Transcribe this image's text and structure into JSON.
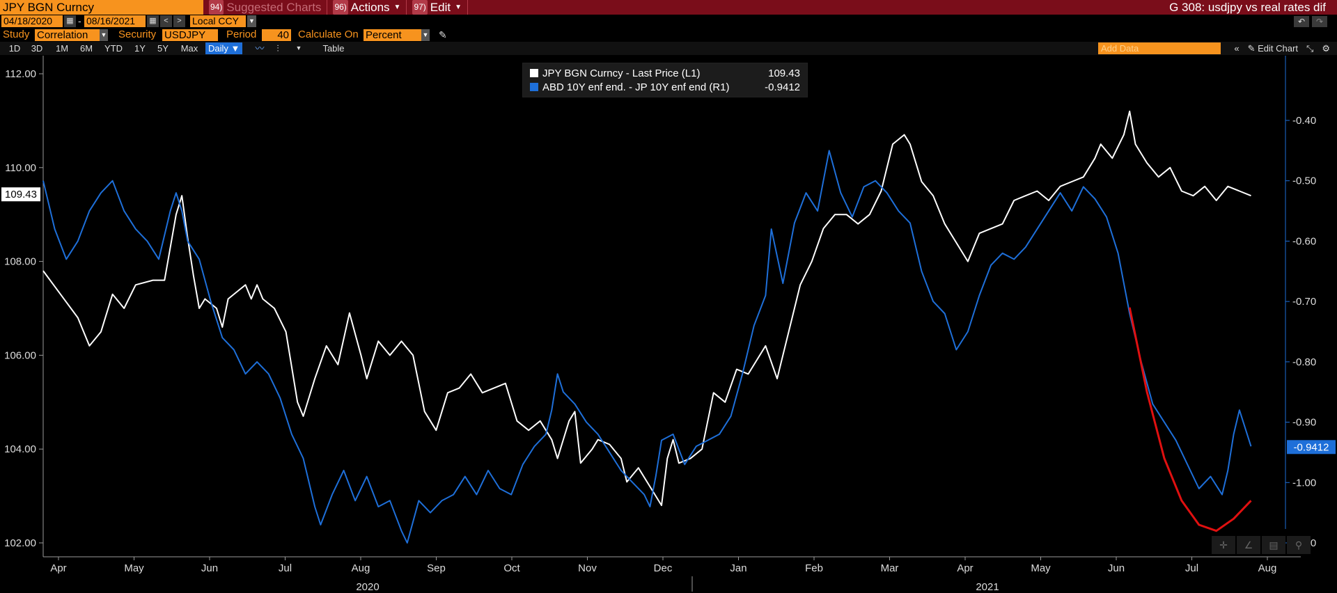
{
  "topbar": {
    "ticker": "JPY BGN Curncy",
    "menu": [
      {
        "num": "94)",
        "label": "Suggested Charts",
        "dim": true,
        "caret": false
      },
      {
        "num": "96)",
        "label": "Actions",
        "dim": false,
        "caret": true
      },
      {
        "num": "97)",
        "label": "Edit",
        "dim": false,
        "caret": true
      }
    ],
    "title": "G 308: usdjpy vs real rates dif"
  },
  "daterow": {
    "start_date": "04/18/2020",
    "end_date": "08/16/2021",
    "currency": "Local CCY"
  },
  "studyrow": {
    "study_label": "Study",
    "study_value": "Correlation",
    "security_label": "Security",
    "security_value": "USDJPY Cu",
    "period_label": "Period",
    "period_value": "40",
    "calc_label": "Calculate On",
    "calc_value": "Percent"
  },
  "rangerow": {
    "ranges": [
      "1D",
      "3D",
      "1M",
      "6M",
      "YTD",
      "1Y",
      "5Y",
      "Max"
    ],
    "frequency": "Daily ▼",
    "table_label": "Table",
    "add_data_placeholder": "Add Data",
    "edit_chart_label": "Edit Chart"
  },
  "legend": [
    {
      "name": "JPY BGN Curncy - Last Price (L1)",
      "value": "109.43",
      "color": "#ffffff"
    },
    {
      "name": "ABD 10Y enf end. - JP 10Y enf end (R1)",
      "value": "-0.9412",
      "color": "#1e6fd9"
    }
  ],
  "chart_data": {
    "type": "line",
    "x_axis": {
      "months": [
        "Apr",
        "May",
        "Jun",
        "Jul",
        "Aug",
        "Sep",
        "Oct",
        "Nov",
        "Dec",
        "Jan",
        "Feb",
        "Mar",
        "Apr",
        "May",
        "Jun",
        "Jul",
        "Aug"
      ],
      "years": [
        "2020",
        "2021"
      ]
    },
    "y_left": {
      "ticks": [
        "112.00",
        "110.00",
        "108.00",
        "106.00",
        "104.00",
        "102.00"
      ],
      "range": [
        102,
        112
      ],
      "last_label": "109.43"
    },
    "y_right": {
      "ticks": [
        "-0.40",
        "-0.50",
        "-0.60",
        "-0.70",
        "-0.80",
        "-0.90",
        "-1.00",
        "-1.10"
      ],
      "range": [
        -1.1,
        -0.4
      ],
      "last_label": "-0.9412"
    },
    "series": [
      {
        "name": "JPY BGN Curncy - Last Price (L1)",
        "axis": "left",
        "color": "#ffffff",
        "points": [
          [
            0,
            107.8
          ],
          [
            3,
            107.3
          ],
          [
            6,
            106.8
          ],
          [
            8,
            106.2
          ],
          [
            10,
            106.5
          ],
          [
            12,
            107.3
          ],
          [
            14,
            107.0
          ],
          [
            16,
            107.5
          ],
          [
            19,
            107.6
          ],
          [
            21,
            107.6
          ],
          [
            23,
            109.0
          ],
          [
            24,
            109.4
          ],
          [
            25,
            108.5
          ],
          [
            26,
            107.7
          ],
          [
            27,
            107.0
          ],
          [
            28,
            107.2
          ],
          [
            30,
            107.0
          ],
          [
            31,
            106.6
          ],
          [
            32,
            107.2
          ],
          [
            34,
            107.4
          ],
          [
            35,
            107.5
          ],
          [
            36,
            107.2
          ],
          [
            37,
            107.5
          ],
          [
            38,
            107.2
          ],
          [
            40,
            107.0
          ],
          [
            42,
            106.5
          ],
          [
            44,
            105.0
          ],
          [
            45,
            104.7
          ],
          [
            47,
            105.5
          ],
          [
            49,
            106.2
          ],
          [
            51,
            105.8
          ],
          [
            53,
            106.9
          ],
          [
            55,
            106.0
          ],
          [
            56,
            105.5
          ],
          [
            58,
            106.3
          ],
          [
            60,
            106.0
          ],
          [
            62,
            106.3
          ],
          [
            64,
            106.0
          ],
          [
            66,
            104.8
          ],
          [
            68,
            104.4
          ],
          [
            70,
            105.2
          ],
          [
            72,
            105.3
          ],
          [
            74,
            105.6
          ],
          [
            76,
            105.2
          ],
          [
            78,
            105.3
          ],
          [
            80,
            105.4
          ],
          [
            82,
            104.6
          ],
          [
            84,
            104.4
          ],
          [
            86,
            104.6
          ],
          [
            88,
            104.2
          ],
          [
            89,
            103.8
          ],
          [
            91,
            104.6
          ],
          [
            92,
            104.8
          ],
          [
            93,
            103.7
          ],
          [
            95,
            104.0
          ],
          [
            96,
            104.2
          ],
          [
            98,
            104.1
          ],
          [
            100,
            103.8
          ],
          [
            101,
            103.3
          ],
          [
            103,
            103.6
          ],
          [
            105,
            103.2
          ],
          [
            106,
            103.0
          ],
          [
            107,
            102.8
          ],
          [
            108,
            103.8
          ],
          [
            109,
            104.2
          ],
          [
            110,
            103.7
          ],
          [
            112,
            103.8
          ],
          [
            114,
            104.0
          ],
          [
            116,
            105.2
          ],
          [
            118,
            105.0
          ],
          [
            120,
            105.7
          ],
          [
            122,
            105.6
          ],
          [
            124,
            106.0
          ],
          [
            125,
            106.2
          ],
          [
            127,
            105.5
          ],
          [
            129,
            106.5
          ],
          [
            131,
            107.5
          ],
          [
            133,
            108.0
          ],
          [
            135,
            108.7
          ],
          [
            137,
            109.0
          ],
          [
            139,
            109.0
          ],
          [
            141,
            108.8
          ],
          [
            143,
            109.0
          ],
          [
            145,
            109.5
          ],
          [
            147,
            110.5
          ],
          [
            149,
            110.7
          ],
          [
            150,
            110.5
          ],
          [
            152,
            109.7
          ],
          [
            154,
            109.4
          ],
          [
            156,
            108.8
          ],
          [
            158,
            108.4
          ],
          [
            160,
            108.0
          ],
          [
            162,
            108.6
          ],
          [
            164,
            108.7
          ],
          [
            166,
            108.8
          ],
          [
            168,
            109.3
          ],
          [
            170,
            109.4
          ],
          [
            172,
            109.5
          ],
          [
            174,
            109.3
          ],
          [
            176,
            109.6
          ],
          [
            178,
            109.7
          ],
          [
            180,
            109.8
          ],
          [
            182,
            110.2
          ],
          [
            183,
            110.5
          ],
          [
            185,
            110.2
          ],
          [
            187,
            110.7
          ],
          [
            188,
            111.2
          ],
          [
            189,
            110.5
          ],
          [
            191,
            110.1
          ],
          [
            193,
            109.8
          ],
          [
            195,
            110.0
          ],
          [
            197,
            109.5
          ],
          [
            199,
            109.4
          ],
          [
            201,
            109.6
          ],
          [
            203,
            109.3
          ],
          [
            205,
            109.6
          ],
          [
            207,
            109.5
          ],
          [
            209,
            109.4
          ]
        ]
      },
      {
        "name": "ABD 10Y enf end. - JP 10Y enf end (R1)",
        "axis": "right",
        "color": "#1e6fd9",
        "points": [
          [
            0,
            -0.5
          ],
          [
            2,
            -0.58
          ],
          [
            4,
            -0.63
          ],
          [
            6,
            -0.6
          ],
          [
            8,
            -0.55
          ],
          [
            10,
            -0.52
          ],
          [
            12,
            -0.5
          ],
          [
            14,
            -0.55
          ],
          [
            16,
            -0.58
          ],
          [
            18,
            -0.6
          ],
          [
            20,
            -0.63
          ],
          [
            22,
            -0.55
          ],
          [
            23,
            -0.52
          ],
          [
            24,
            -0.55
          ],
          [
            25,
            -0.6
          ],
          [
            27,
            -0.63
          ],
          [
            29,
            -0.7
          ],
          [
            31,
            -0.76
          ],
          [
            33,
            -0.78
          ],
          [
            35,
            -0.82
          ],
          [
            37,
            -0.8
          ],
          [
            39,
            -0.82
          ],
          [
            41,
            -0.86
          ],
          [
            43,
            -0.92
          ],
          [
            45,
            -0.96
          ],
          [
            47,
            -1.04
          ],
          [
            48,
            -1.07
          ],
          [
            50,
            -1.02
          ],
          [
            52,
            -0.98
          ],
          [
            54,
            -1.03
          ],
          [
            56,
            -0.99
          ],
          [
            58,
            -1.04
          ],
          [
            60,
            -1.03
          ],
          [
            62,
            -1.08
          ],
          [
            63,
            -1.1
          ],
          [
            65,
            -1.03
          ],
          [
            67,
            -1.05
          ],
          [
            69,
            -1.03
          ],
          [
            71,
            -1.02
          ],
          [
            73,
            -0.99
          ],
          [
            75,
            -1.02
          ],
          [
            77,
            -0.98
          ],
          [
            79,
            -1.01
          ],
          [
            81,
            -1.02
          ],
          [
            83,
            -0.97
          ],
          [
            85,
            -0.94
          ],
          [
            87,
            -0.92
          ],
          [
            88,
            -0.88
          ],
          [
            89,
            -0.82
          ],
          [
            90,
            -0.85
          ],
          [
            92,
            -0.87
          ],
          [
            94,
            -0.9
          ],
          [
            96,
            -0.92
          ],
          [
            98,
            -0.95
          ],
          [
            100,
            -0.98
          ],
          [
            102,
            -1.0
          ],
          [
            104,
            -1.02
          ],
          [
            105,
            -1.04
          ],
          [
            106,
            -0.99
          ],
          [
            107,
            -0.93
          ],
          [
            109,
            -0.92
          ],
          [
            111,
            -0.97
          ],
          [
            113,
            -0.94
          ],
          [
            115,
            -0.93
          ],
          [
            117,
            -0.92
          ],
          [
            119,
            -0.89
          ],
          [
            121,
            -0.82
          ],
          [
            123,
            -0.74
          ],
          [
            125,
            -0.69
          ],
          [
            126,
            -0.58
          ],
          [
            128,
            -0.67
          ],
          [
            130,
            -0.57
          ],
          [
            132,
            -0.52
          ],
          [
            134,
            -0.55
          ],
          [
            136,
            -0.45
          ],
          [
            138,
            -0.52
          ],
          [
            140,
            -0.56
          ],
          [
            142,
            -0.51
          ],
          [
            144,
            -0.5
          ],
          [
            146,
            -0.52
          ],
          [
            148,
            -0.55
          ],
          [
            150,
            -0.57
          ],
          [
            152,
            -0.65
          ],
          [
            154,
            -0.7
          ],
          [
            156,
            -0.72
          ],
          [
            158,
            -0.78
          ],
          [
            160,
            -0.75
          ],
          [
            162,
            -0.69
          ],
          [
            164,
            -0.64
          ],
          [
            166,
            -0.62
          ],
          [
            168,
            -0.63
          ],
          [
            170,
            -0.61
          ],
          [
            172,
            -0.58
          ],
          [
            174,
            -0.55
          ],
          [
            176,
            -0.52
          ],
          [
            178,
            -0.55
          ],
          [
            180,
            -0.51
          ],
          [
            182,
            -0.53
          ],
          [
            184,
            -0.56
          ],
          [
            186,
            -0.62
          ],
          [
            188,
            -0.72
          ],
          [
            190,
            -0.8
          ],
          [
            192,
            -0.87
          ],
          [
            194,
            -0.9
          ],
          [
            196,
            -0.93
          ],
          [
            198,
            -0.97
          ],
          [
            200,
            -1.01
          ],
          [
            202,
            -0.99
          ],
          [
            204,
            -1.02
          ],
          [
            205,
            -0.98
          ],
          [
            206,
            -0.92
          ],
          [
            207,
            -0.88
          ],
          [
            208,
            -0.91
          ],
          [
            209,
            -0.94
          ]
        ]
      },
      {
        "name": "",
        "axis": "right",
        "color": "#e01010",
        "annotation": true,
        "points": [
          [
            188,
            -0.71
          ],
          [
            191,
            -0.85
          ],
          [
            194,
            -0.96
          ],
          [
            197,
            -1.03
          ],
          [
            200,
            -1.07
          ],
          [
            203,
            -1.08
          ],
          [
            206,
            -1.06
          ],
          [
            209,
            -1.03
          ]
        ]
      }
    ],
    "x_max": 214,
    "grid": false,
    "legend_position": "top-center"
  },
  "chart_tools": [
    "crosshair-icon",
    "annotate-icon",
    "table-icon",
    "zoom-icon"
  ]
}
